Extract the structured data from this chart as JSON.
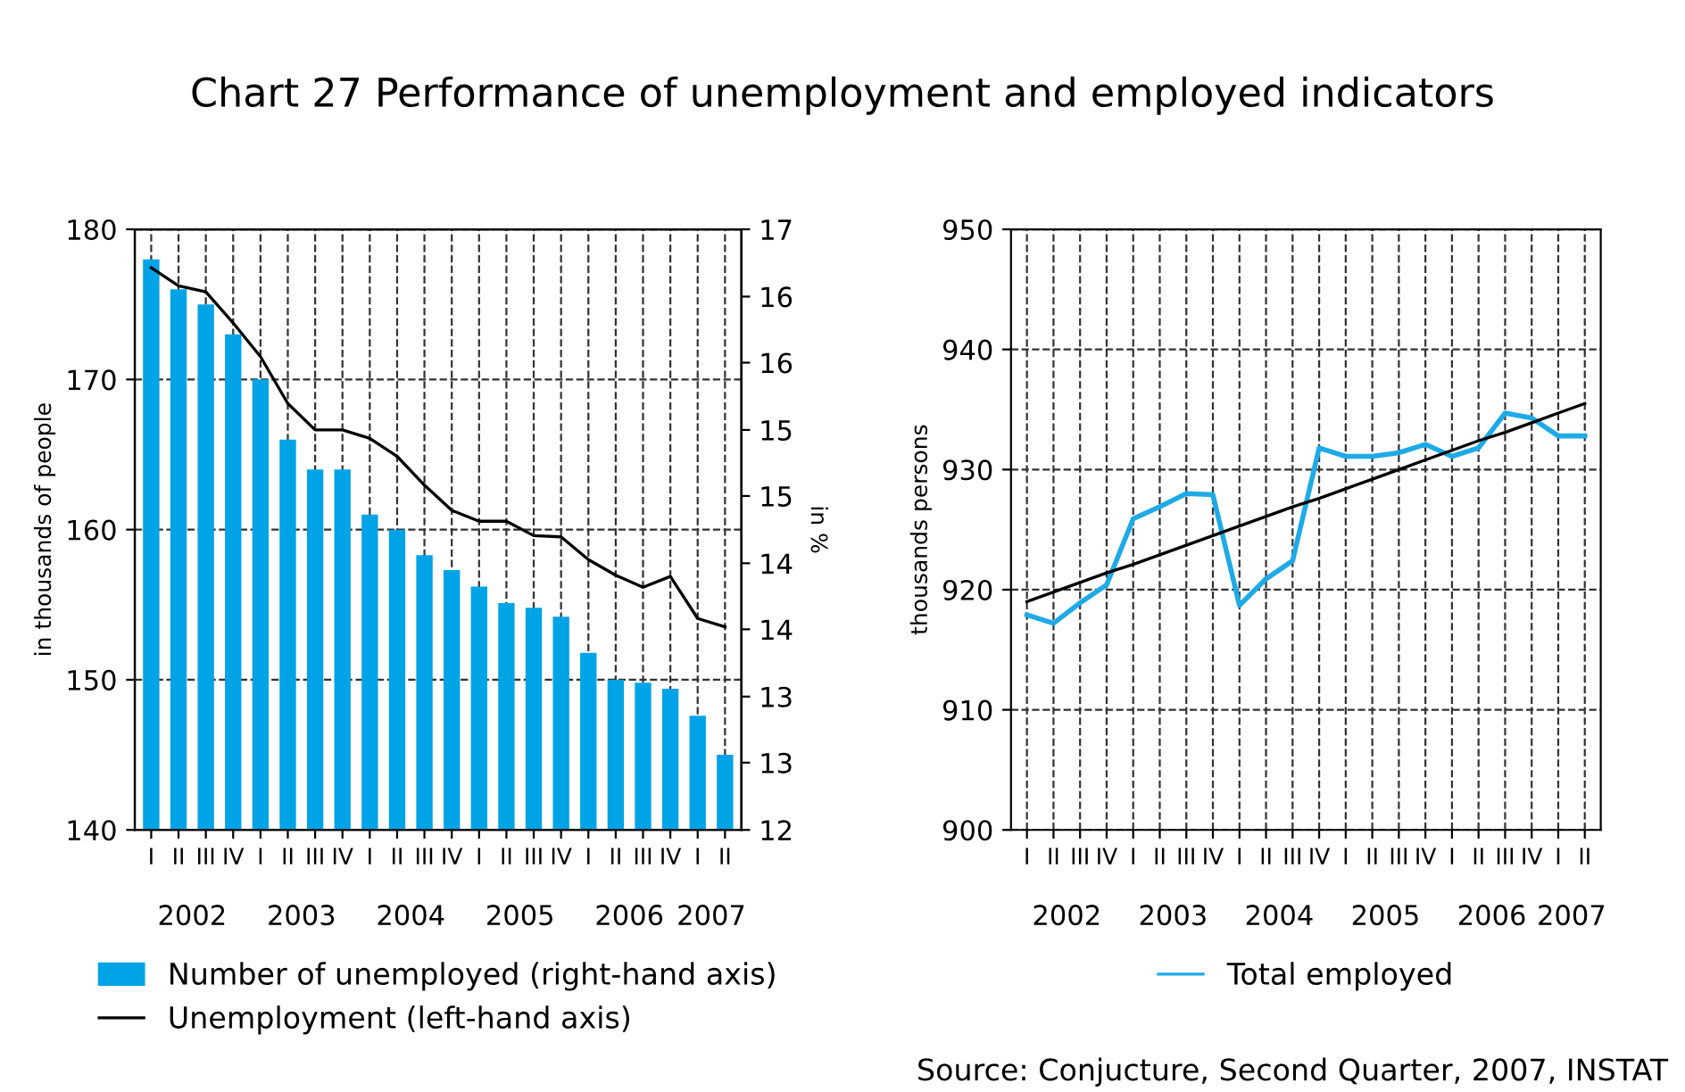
{
  "chart_data": [
    {
      "type": "bar",
      "title": "Chart 27 Performance of unemployment and employed indicators",
      "ylabel": "in thousands of people",
      "y2label": "in %",
      "categories": [
        "I",
        "II",
        "III",
        "IV",
        "I",
        "II",
        "III",
        "IV",
        "I",
        "II",
        "III",
        "IV",
        "I",
        "II",
        "III",
        "IV",
        "I",
        "II",
        "III",
        "IV",
        "I",
        "II"
      ],
      "annotations": [
        "2002",
        "2003",
        "2004",
        "2005",
        "2006",
        "2007"
      ],
      "series": [
        {
          "name": "Number of unemployed (right-hand axis)",
          "type": "bar",
          "color": "#00a3e6",
          "values": [
            178,
            176,
            175,
            173,
            170,
            166,
            164,
            164,
            161,
            160,
            158.3,
            157.3,
            156.2,
            155.1,
            154.8,
            154.2,
            151.8,
            150,
            149.8,
            149.4,
            147.6,
            145
          ]
        },
        {
          "name": "Unemployment (left-hand axis)",
          "type": "line",
          "axis": "y2",
          "color": "#000000",
          "values": [
            16.68,
            16.53,
            16.48,
            16.22,
            15.94,
            15.55,
            15.33,
            15.33,
            15.26,
            15.11,
            14.87,
            14.66,
            14.57,
            14.57,
            14.45,
            14.44,
            14.25,
            14.12,
            14.02,
            14.11,
            13.76,
            13.69
          ]
        }
      ],
      "ylim": [
        140,
        180
      ],
      "yticks": [
        140,
        150,
        160,
        170,
        180
      ],
      "y2lim": [
        12,
        17
      ],
      "y2ticks": [
        {
          "value": 12,
          "label": "12"
        },
        {
          "value": 12.56,
          "label": "13"
        },
        {
          "value": 13.11,
          "label": "13"
        },
        {
          "value": 13.67,
          "label": "14"
        },
        {
          "value": 14.22,
          "label": "14"
        },
        {
          "value": 14.78,
          "label": "15"
        },
        {
          "value": 15.33,
          "label": "15"
        },
        {
          "value": 15.89,
          "label": "16"
        },
        {
          "value": 16.44,
          "label": "16"
        },
        {
          "value": 17,
          "label": "17"
        }
      ],
      "grid": true,
      "legend": "bottom"
    },
    {
      "type": "line",
      "ylabel": "thousands persons",
      "categories": [
        "I",
        "II",
        "III",
        "IV",
        "I",
        "II",
        "III",
        "IV",
        "I",
        "II",
        "III",
        "IV",
        "I",
        "II",
        "III",
        "IV",
        "I",
        "II",
        "III",
        "IV",
        "I",
        "II"
      ],
      "annotations": [
        "2002",
        "2003",
        "2004",
        "2005",
        "2006",
        "2007",
        "Source: Conjucture, Second Quarter, 2007, INSTAT"
      ],
      "series": [
        {
          "name": "Total employed",
          "color": "#1eaae6",
          "values": [
            917.9,
            917.2,
            918.9,
            920.4,
            925.9,
            926.9,
            928.0,
            927.9,
            918.7,
            920.9,
            922.4,
            931.8,
            931.1,
            931.1,
            931.4,
            932.1,
            931.1,
            931.8,
            934.7,
            934.3,
            932.8,
            932.8
          ]
        },
        {
          "color": "#000000",
          "values": [
            919.0,
            919.8,
            920.6,
            921.4,
            922.1,
            922.9,
            923.7,
            924.5,
            925.3,
            926.1,
            926.9,
            927.6,
            928.4,
            929.2,
            930.0,
            930.8,
            931.6,
            932.4,
            933.1,
            933.9,
            934.7,
            935.5
          ]
        }
      ],
      "ylim": [
        900,
        950
      ],
      "yticks": [
        900,
        910,
        920,
        930,
        940,
        950
      ],
      "grid": true,
      "legend": "bottom"
    }
  ]
}
